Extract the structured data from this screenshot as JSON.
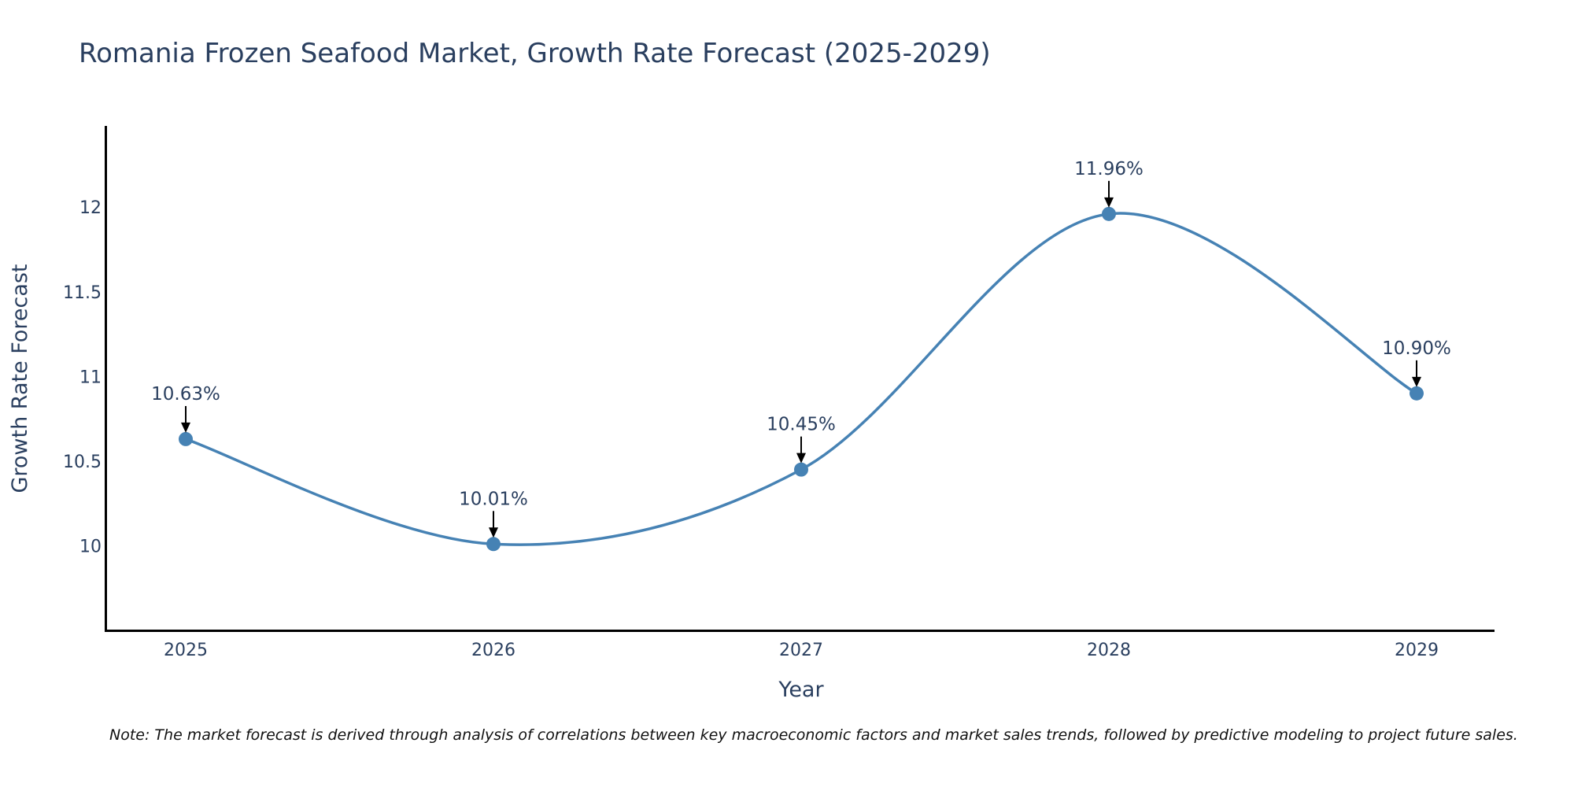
{
  "chart_data": {
    "type": "line",
    "title": "Romania Frozen Seafood Market, Growth Rate Forecast (2025-2029)",
    "xlabel": "Year",
    "ylabel": "Growth Rate Forecast",
    "categories": [
      "2025",
      "2026",
      "2027",
      "2028",
      "2029"
    ],
    "values": [
      10.63,
      10.01,
      10.45,
      11.96,
      10.9
    ],
    "data_labels": [
      "10.63%",
      "10.01%",
      "10.45%",
      "11.96%",
      "10.90%"
    ],
    "yticks": [
      10,
      10.5,
      11,
      11.5,
      12
    ],
    "ytick_labels": [
      "10",
      "10.5",
      "11",
      "11.5",
      "12"
    ],
    "ylim": [
      9.5,
      12.48
    ],
    "line_shape": "spline",
    "grid": false,
    "line_color": "#4682b4",
    "marker_color": "#4682b4",
    "note": "Note: The market forecast is derived through analysis of correlations between key macroeconomic factors and market sales trends, followed by predictive modeling to project future sales."
  }
}
